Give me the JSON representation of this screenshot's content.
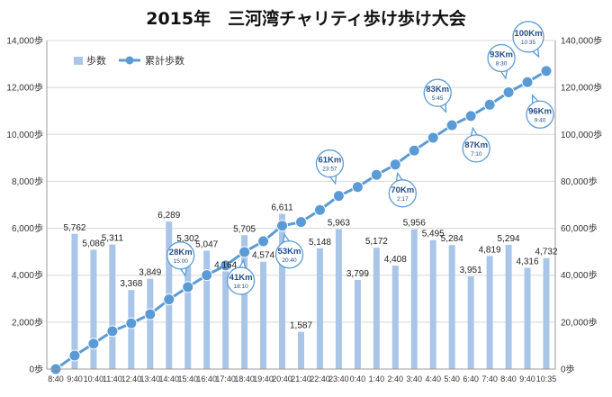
{
  "chart_data": {
    "type": "bar+line",
    "title": "2015年　三河湾チャリティ歩け歩け大会",
    "categories": [
      "8:40",
      "9:40",
      "10:40",
      "11:40",
      "12:40",
      "13:40",
      "14:40",
      "15:40",
      "16:40",
      "17:40",
      "18:40",
      "19:40",
      "20:40",
      "21:40",
      "22:40",
      "23:40",
      "0:40",
      "1:40",
      "2:40",
      "3:40",
      "4:40",
      "5:40",
      "6:40",
      "7:40",
      "8:40",
      "9:40",
      "10:35"
    ],
    "series": [
      {
        "name": "歩数",
        "type": "bar",
        "axis": "left",
        "color": "#a9c6e8",
        "values": [
          null,
          5762,
          5086,
          5311,
          3368,
          3849,
          6289,
          5302,
          5047,
          4164,
          5705,
          4574,
          6611,
          1587,
          5148,
          5963,
          3799,
          5172,
          4408,
          5956,
          5495,
          5284,
          3951,
          4819,
          5294,
          4316,
          4732
        ],
        "labels": [
          "",
          "5,762",
          "5,086",
          "5,311",
          "3,368",
          "3,849",
          "6,289",
          "5,302",
          "5,047",
          "4,164",
          "5,705",
          "4,574",
          "6,611",
          "1,587",
          "5,148",
          "5,963",
          "3,799",
          "5,172",
          "4,408",
          "5,956",
          "5,495",
          "5,284",
          "3,951",
          "4,819",
          "5,294",
          "4,316",
          "4,732"
        ]
      },
      {
        "name": "累計歩数",
        "type": "line",
        "axis": "right",
        "color": "#5b9bd5",
        "values": [
          0,
          5762,
          10848,
          16159,
          19527,
          23376,
          29665,
          34967,
          40014,
          44178,
          49883,
          54457,
          61068,
          62655,
          67803,
          73766,
          77565,
          82737,
          87145,
          93101,
          98596,
          103880,
          107831,
          112650,
          117944,
          122260,
          126992
        ]
      }
    ],
    "y_left": {
      "min": 0,
      "max": 14000,
      "step": 2000,
      "unit": "歩",
      "tick_labels": [
        "0歩",
        "2,000歩",
        "4,000歩",
        "6,000歩",
        "8,000歩",
        "10,000歩",
        "12,000歩",
        "14,000歩"
      ]
    },
    "y_right": {
      "min": 0,
      "max": 140000,
      "step": 20000,
      "unit": "歩",
      "tick_labels": [
        "0歩",
        "20,000歩",
        "40,000歩",
        "60,000歩",
        "80,000歩",
        "100,000歩",
        "120,000歩",
        "140,000歩"
      ]
    },
    "grid": true,
    "legend_position": "top-left",
    "annotations": [
      {
        "km": "28Km",
        "time": "15:00",
        "at_index": 7
      },
      {
        "km": "41Km",
        "time": "18:10",
        "at_index": 10
      },
      {
        "km": "53Km",
        "time": "20:40",
        "at_index": 12
      },
      {
        "km": "61Km",
        "time": "23:57",
        "at_index": 15
      },
      {
        "km": "70Km",
        "time": "2:17",
        "at_index": 18
      },
      {
        "km": "83Km",
        "time": "5:45",
        "at_index": 21
      },
      {
        "km": "87Km",
        "time": "7:10",
        "at_index": 22
      },
      {
        "km": "93Km",
        "time": "8:30",
        "at_index": 24
      },
      {
        "km": "96Km",
        "time": "9:40",
        "at_index": 25
      },
      {
        "km": "100Km",
        "time": "10:35",
        "at_index": 26
      }
    ]
  }
}
